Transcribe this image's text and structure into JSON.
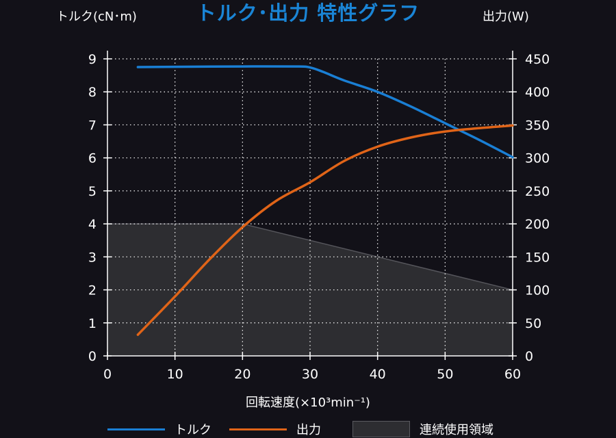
{
  "chart_data": {
    "type": "line",
    "title": "トルク･出力  特性グラフ",
    "ylabel_left": "トルク(cN･m)",
    "ylabel_right": "出力(W)",
    "xlabel": "回転速度(×10³min⁻¹)",
    "xlim": [
      0,
      60
    ],
    "ylim_left": [
      0,
      9
    ],
    "ylim_right": [
      0,
      450
    ],
    "x_ticks": [
      "0",
      "10",
      "20",
      "30",
      "40",
      "50",
      "60"
    ],
    "y_left_ticks": [
      "0",
      "1",
      "2",
      "3",
      "4",
      "5",
      "6",
      "7",
      "8",
      "9"
    ],
    "y_right_ticks": [
      "0",
      "50",
      "100",
      "150",
      "200",
      "250",
      "300",
      "350",
      "400",
      "450"
    ],
    "grid": true,
    "series": [
      {
        "name": "トルク",
        "axis": "left",
        "color": "#1a7fd4",
        "x": [
          4.5,
          10,
          20,
          28,
          30,
          32,
          35,
          40,
          45,
          50,
          55,
          60
        ],
        "y": [
          8.75,
          8.76,
          8.77,
          8.77,
          8.74,
          8.6,
          8.35,
          8.0,
          7.55,
          7.05,
          6.55,
          6.02
        ]
      },
      {
        "name": "出力",
        "axis": "right",
        "color": "#e06418",
        "x": [
          4.5,
          10,
          15,
          20,
          25,
          30,
          35,
          40,
          45,
          50,
          55,
          60
        ],
        "y": [
          32,
          90,
          145,
          195,
          235,
          263,
          295,
          317,
          331,
          340,
          345,
          349
        ]
      },
      {
        "name": "連続使用領域",
        "type": "area",
        "axis": "left",
        "color": "#2d2d31",
        "x": [
          0,
          20,
          60
        ],
        "y": [
          4,
          4,
          2
        ]
      }
    ],
    "legend": [
      "トルク",
      "出力",
      "連続使用領域"
    ],
    "legend_position": "bottom"
  }
}
